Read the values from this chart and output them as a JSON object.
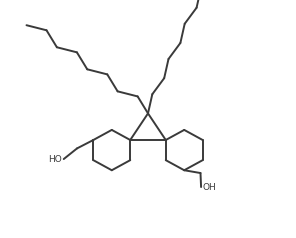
{
  "background_color": "#ffffff",
  "line_color": "#3a3a3a",
  "line_width": 1.4,
  "figsize": [
    2.96,
    2.38
  ],
  "dpi": 100,
  "xlim": [
    0,
    10
  ],
  "ylim": [
    0,
    8.5
  ]
}
